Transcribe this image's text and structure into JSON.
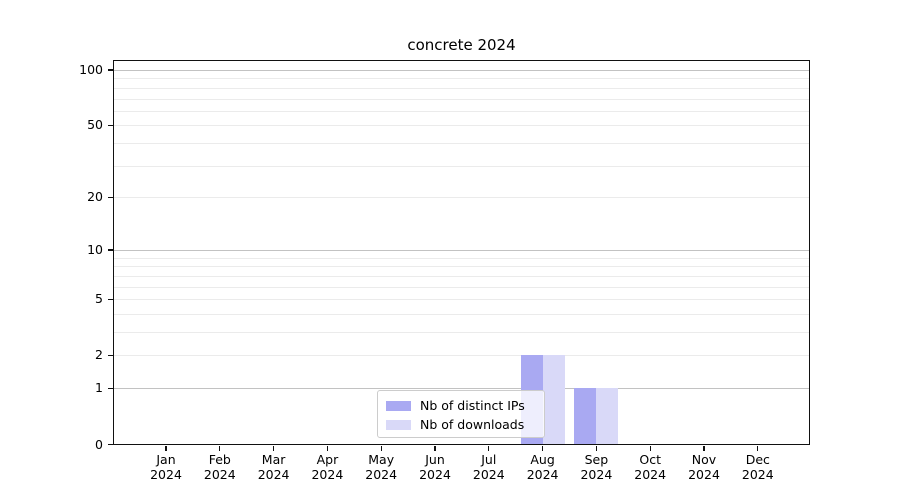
{
  "chart_data": {
    "type": "bar",
    "title": "concrete 2024",
    "categories": [
      "Jan 2024",
      "Feb 2024",
      "Mar 2024",
      "Apr 2024",
      "May 2024",
      "Jun 2024",
      "Jul 2024",
      "Aug 2024",
      "Sep 2024",
      "Oct 2024",
      "Nov 2024",
      "Dec 2024"
    ],
    "x_tick_line1": [
      "Jan",
      "Feb",
      "Mar",
      "Apr",
      "May",
      "Jun",
      "Jul",
      "Aug",
      "Sep",
      "Oct",
      "Nov",
      "Dec"
    ],
    "x_tick_line2": "2024",
    "series": [
      {
        "name": "Nb of distinct IPs",
        "color": "#a9a9f2",
        "values": [
          0,
          0,
          0,
          0,
          0,
          0,
          0,
          2,
          1,
          0,
          0,
          0
        ]
      },
      {
        "name": "Nb of downloads",
        "color": "#d9d9f8",
        "values": [
          0,
          0,
          0,
          0,
          0,
          0,
          0,
          2,
          1,
          0,
          0,
          0
        ]
      }
    ],
    "yscale": "log10(1+x)",
    "ylim": [
      0,
      114
    ],
    "ylabel": "",
    "xlabel": "",
    "y_tick_values": [
      0,
      1,
      2,
      5,
      10,
      20,
      50,
      100
    ],
    "y_tick_labels": [
      "0",
      "1",
      "2",
      "5",
      "10",
      "20",
      "50",
      "100"
    ],
    "y_major_gridlines": [
      1,
      10,
      100
    ],
    "y_minor_gridlines": [
      2,
      3,
      4,
      5,
      6,
      7,
      8,
      9,
      20,
      30,
      40,
      50,
      60,
      70,
      80,
      90
    ],
    "grid": "horizontal only",
    "legend": {
      "position": "inside lower-center",
      "entries": [
        "Nb of distinct IPs",
        "Nb of downloads"
      ]
    },
    "colors": {
      "major_grid": "#c2c2c2",
      "minor_grid": "#ebebeb",
      "spine": "#111111",
      "text": "#000000",
      "legend_border": "#cccccc",
      "legend_bg": "rgba(255,255,255,0.8)",
      "background": "#ffffff"
    }
  }
}
